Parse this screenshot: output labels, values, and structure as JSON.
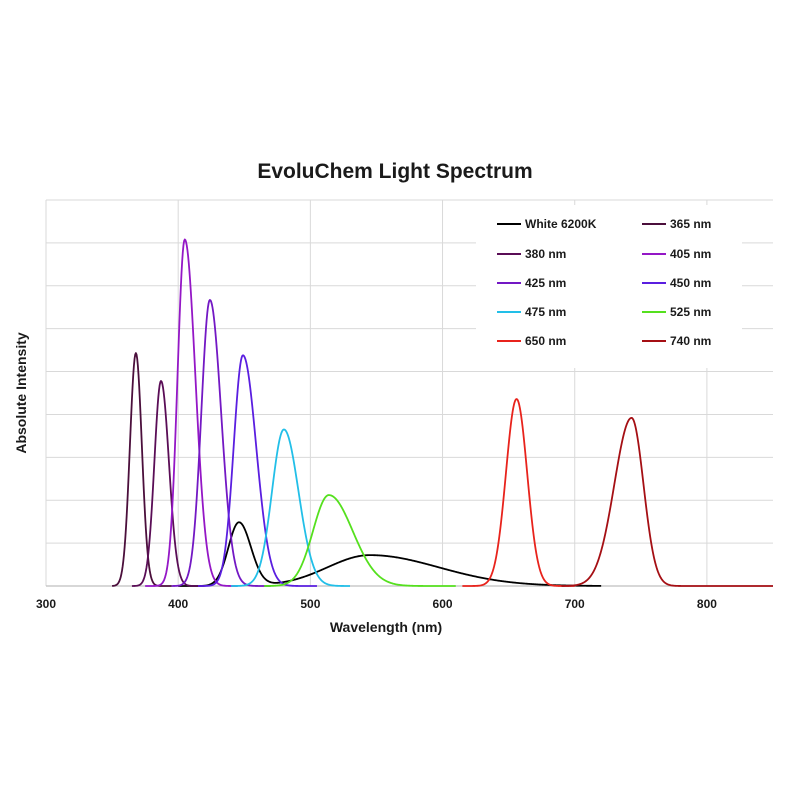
{
  "chart_data": {
    "type": "line",
    "title": "EvoluChem Light Spectrum",
    "xlabel": "Wavelength (nm)",
    "ylabel": "Absolute Intensity",
    "xlim": [
      300,
      850
    ],
    "ylim": [
      0,
      9
    ],
    "x_ticks": [
      300,
      400,
      500,
      600,
      700,
      800
    ],
    "y_tick_labels_shown": false,
    "grid": true,
    "legend_position": "top-right",
    "series": [
      {
        "name": "White 6200K",
        "color": "#000000",
        "peaks": [
          {
            "center": 446,
            "height": 1.48,
            "width_left": 8,
            "width_right": 9
          },
          {
            "center": 545,
            "height": 0.72,
            "width_left": 32,
            "width_right": 52
          }
        ],
        "range": [
          400,
          720
        ]
      },
      {
        "name": "365 nm",
        "color": "#4b0f3c",
        "peaks": [
          {
            "center": 368,
            "height": 5.43,
            "width_left": 4.5,
            "width_right": 4.5
          }
        ],
        "range": [
          350,
          395
        ]
      },
      {
        "name": "380 nm",
        "color": "#5a0d56",
        "peaks": [
          {
            "center": 387,
            "height": 4.78,
            "width_left": 5,
            "width_right": 6
          }
        ],
        "range": [
          365,
          420
        ]
      },
      {
        "name": "405 nm",
        "color": "#9417c6",
        "peaks": [
          {
            "center": 405,
            "height": 8.08,
            "width_left": 5.5,
            "width_right": 8
          }
        ],
        "range": [
          375,
          445
        ]
      },
      {
        "name": "425 nm",
        "color": "#7318c4",
        "peaks": [
          {
            "center": 424,
            "height": 6.67,
            "width_left": 6.5,
            "width_right": 8.5
          }
        ],
        "range": [
          395,
          470
        ]
      },
      {
        "name": "450 nm",
        "color": "#5a1ee0",
        "peaks": [
          {
            "center": 449,
            "height": 5.38,
            "width_left": 7,
            "width_right": 10
          }
        ],
        "range": [
          415,
          505
        ]
      },
      {
        "name": "475 nm",
        "color": "#22bfe8",
        "peaks": [
          {
            "center": 480,
            "height": 3.65,
            "width_left": 9,
            "width_right": 11
          }
        ],
        "range": [
          440,
          530
        ]
      },
      {
        "name": "525 nm",
        "color": "#55e01e",
        "peaks": [
          {
            "center": 514,
            "height": 2.12,
            "width_left": 12,
            "width_right": 18
          }
        ],
        "range": [
          465,
          610
        ]
      },
      {
        "name": "650 nm",
        "color": "#e8231c",
        "peaks": [
          {
            "center": 656,
            "height": 4.36,
            "width_left": 8,
            "width_right": 8
          }
        ],
        "range": [
          615,
          700
        ]
      },
      {
        "name": "740 nm",
        "color": "#a50f14",
        "peaks": [
          {
            "center": 743,
            "height": 3.92,
            "width_left": 13,
            "width_right": 9
          }
        ],
        "range": [
          690,
          850
        ]
      }
    ]
  }
}
